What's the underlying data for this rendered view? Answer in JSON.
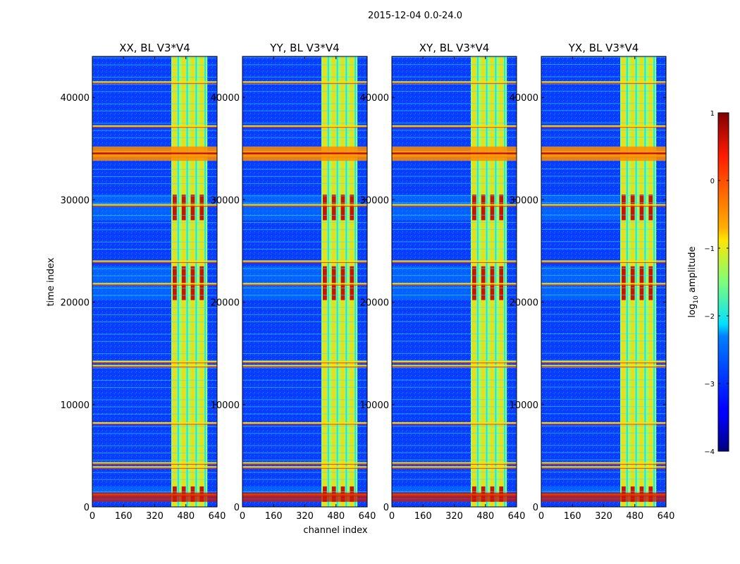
{
  "chart_data": {
    "type": "heatmap",
    "suptitle": "2015-12-04 0.0-24.0",
    "colormap": "jet",
    "xlabel": "channel index",
    "ylabel": "time index",
    "xlim": [
      0,
      640
    ],
    "ylim": [
      0,
      44000
    ],
    "xticks": [
      0,
      160,
      320,
      480,
      640
    ],
    "yticks": [
      0,
      10000,
      20000,
      30000,
      40000
    ],
    "colorbar": {
      "label_prefix": "log",
      "label_sub": "10",
      "label_suffix": " amplitude",
      "range": [
        -4,
        1
      ],
      "ticks": [
        -4,
        -3,
        -2,
        -1,
        0,
        1
      ],
      "tick_labels": [
        "−4",
        "−3",
        "−2",
        "−1",
        "0",
        "1"
      ]
    },
    "bright_channel_band": [
      405,
      590
    ],
    "saturated_time_bands": [
      [
        500,
        2000
      ],
      [
        20200,
        23500
      ],
      [
        28000,
        30500
      ]
    ],
    "flagged_time_rows": [
      1200,
      3900,
      4300,
      8200,
      13800,
      14200,
      21800,
      24000,
      29500,
      34300,
      34700,
      37200,
      41500
    ],
    "panels": [
      {
        "title": "XX, BL V3*V4",
        "pol": "XX"
      },
      {
        "title": "YY, BL V3*V4",
        "pol": "YY"
      },
      {
        "title": "XY, BL V3*V4",
        "pol": "XY"
      },
      {
        "title": "YX, BL V3*V4",
        "pol": "YX"
      }
    ]
  }
}
